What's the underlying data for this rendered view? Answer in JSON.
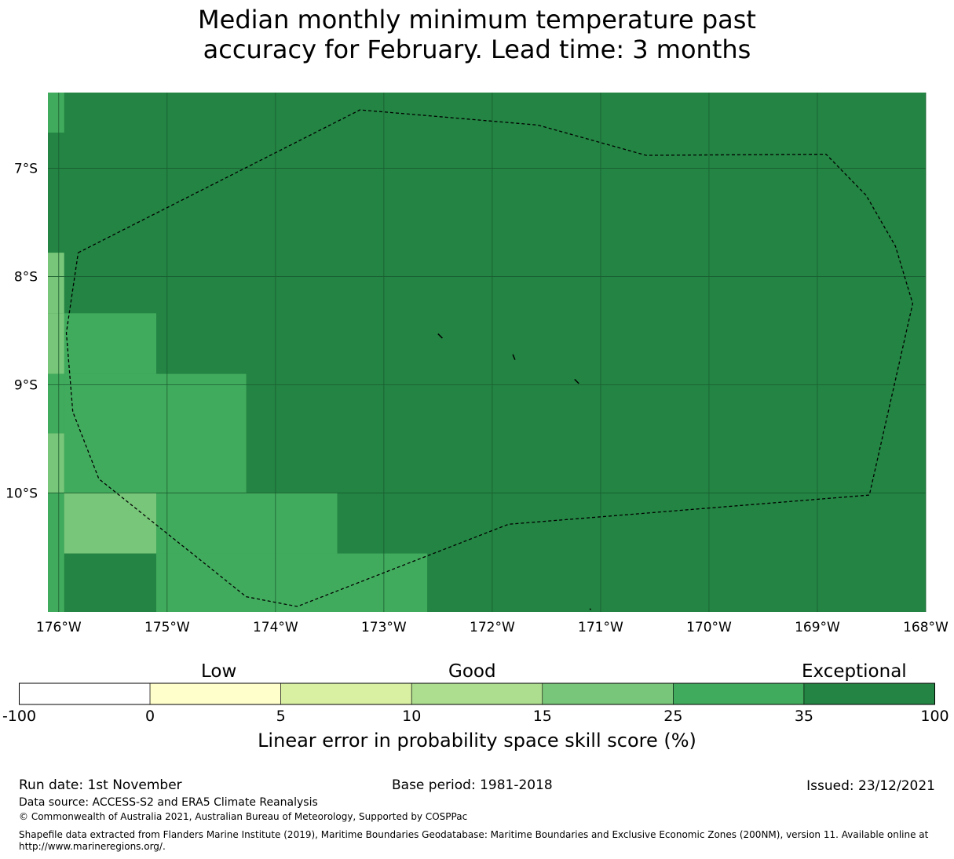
{
  "title_line1": "Median monthly minimum temperature past",
  "title_line2": "accuracy for February. Lead time: 3 months",
  "map": {
    "lon_range": [
      -176.1,
      -168.0
    ],
    "lat_range": [
      -6.3,
      -11.1
    ],
    "lon_ticks": [
      {
        "value": -176,
        "label": "176°W"
      },
      {
        "value": -175,
        "label": "175°W"
      },
      {
        "value": -174,
        "label": "174°W"
      },
      {
        "value": -173,
        "label": "173°W"
      },
      {
        "value": -172,
        "label": "172°W"
      },
      {
        "value": -171,
        "label": "171°W"
      },
      {
        "value": -170,
        "label": "170°W"
      },
      {
        "value": -169,
        "label": "169°W"
      },
      {
        "value": -168,
        "label": "168°W"
      }
    ],
    "lat_ticks": [
      {
        "value": -7,
        "label": "7°S"
      },
      {
        "value": -8,
        "label": "8°S"
      },
      {
        "value": -9,
        "label": "9°S"
      },
      {
        "value": -10,
        "label": "10°S"
      }
    ],
    "background_category": "35-100",
    "cells": [
      {
        "lon": [
          -176.1,
          -175.95
        ],
        "lat": [
          -6.3,
          -6.67
        ],
        "category": "25-35"
      },
      {
        "lon": [
          -176.1,
          -175.95
        ],
        "lat": [
          -7.78,
          -8.34
        ],
        "category": "15-25"
      },
      {
        "lon": [
          -175.95,
          -175.1
        ],
        "lat": [
          -8.34,
          -8.9
        ],
        "category": "25-35"
      },
      {
        "lon": [
          -176.1,
          -175.95
        ],
        "lat": [
          -8.34,
          -8.9
        ],
        "category": "15-25"
      },
      {
        "lon": [
          -176.1,
          -175.95
        ],
        "lat": [
          -8.9,
          -9.45
        ],
        "category": "25-35"
      },
      {
        "lon": [
          -175.95,
          -174.27
        ],
        "lat": [
          -8.9,
          -10.0
        ],
        "category": "25-35"
      },
      {
        "lon": [
          -176.1,
          -175.95
        ],
        "lat": [
          -9.45,
          -10.0
        ],
        "category": "15-25"
      },
      {
        "lon": [
          -176.1,
          -175.95
        ],
        "lat": [
          -10.0,
          -11.1
        ],
        "category": "25-35"
      },
      {
        "lon": [
          -175.95,
          -175.1
        ],
        "lat": [
          -10.0,
          -10.56
        ],
        "category": "15-25"
      },
      {
        "lon": [
          -175.1,
          -173.43
        ],
        "lat": [
          -10.0,
          -10.56
        ],
        "category": "25-35"
      },
      {
        "lon": [
          -175.1,
          -172.6
        ],
        "lat": [
          -10.56,
          -11.1
        ],
        "category": "25-35"
      }
    ],
    "eez_boundary": [
      [
        -175.82,
        -7.78
      ],
      [
        -173.22,
        -6.46
      ],
      [
        -171.58,
        -6.6
      ],
      [
        -170.58,
        -6.88
      ],
      [
        -168.92,
        -6.87
      ],
      [
        -168.55,
        -7.25
      ],
      [
        -168.28,
        -7.72
      ],
      [
        -168.12,
        -8.25
      ],
      [
        -168.52,
        -10.02
      ],
      [
        -171.85,
        -10.29
      ],
      [
        -173.8,
        -11.05
      ],
      [
        -174.27,
        -10.96
      ],
      [
        -175.63,
        -9.87
      ],
      [
        -175.87,
        -9.25
      ],
      [
        -175.93,
        -8.52
      ],
      [
        -175.82,
        -7.78
      ]
    ],
    "islands": [
      [
        [
          -172.5,
          -8.53
        ],
        [
          -172.46,
          -8.57
        ]
      ],
      [
        [
          -171.81,
          -8.72
        ],
        [
          -171.79,
          -8.77
        ]
      ],
      [
        [
          -171.24,
          -8.95
        ],
        [
          -171.2,
          -8.99
        ]
      ],
      [
        [
          -171.1,
          -11.07
        ],
        [
          -171.09,
          -11.08
        ]
      ]
    ]
  },
  "colorbar": {
    "categories": [
      {
        "key": "-100-0",
        "from": "-100",
        "to": "0",
        "color": "#ffffff"
      },
      {
        "key": "0-5",
        "from": "0",
        "to": "5",
        "color": "#ffffcc"
      },
      {
        "key": "5-10",
        "from": "5",
        "to": "10",
        "color": "#d9f0a3"
      },
      {
        "key": "10-15",
        "from": "10",
        "to": "15",
        "color": "#addd8e"
      },
      {
        "key": "15-25",
        "from": "15",
        "to": "25",
        "color": "#78c679"
      },
      {
        "key": "25-35",
        "from": "25",
        "to": "35",
        "color": "#41ab5d"
      },
      {
        "key": "35-100",
        "from": "35",
        "to": "100",
        "color": "#238443"
      }
    ],
    "tick_labels": [
      "-100",
      "0",
      "5",
      "10",
      "15",
      "25",
      "35",
      "100"
    ],
    "low_label": "Low",
    "good_label": "Good",
    "exceptional_label": "Exceptional",
    "xlabel": "Linear error in probability space skill score (%)"
  },
  "footer": {
    "run_date": "Run date: 1st November",
    "base_period": "Base period: 1981-2018",
    "issued": "Issued: 23/12/2021",
    "data_source": "Data source: ACCESS-S2 and ERA5 Climate Reanalysis",
    "copyright": "© Commonwealth of Australia 2021, Australian Bureau of Meteorology, Supported by COSPPac",
    "shapefile_line1": "Shapefile data extracted from Flanders Marine Institute (2019), Maritime Boundaries Geodatabase: Maritime Boundaries and Exclusive Economic Zones (200NM), version 11. Available online at",
    "shapefile_line2": "http://www.marineregions.org/."
  }
}
